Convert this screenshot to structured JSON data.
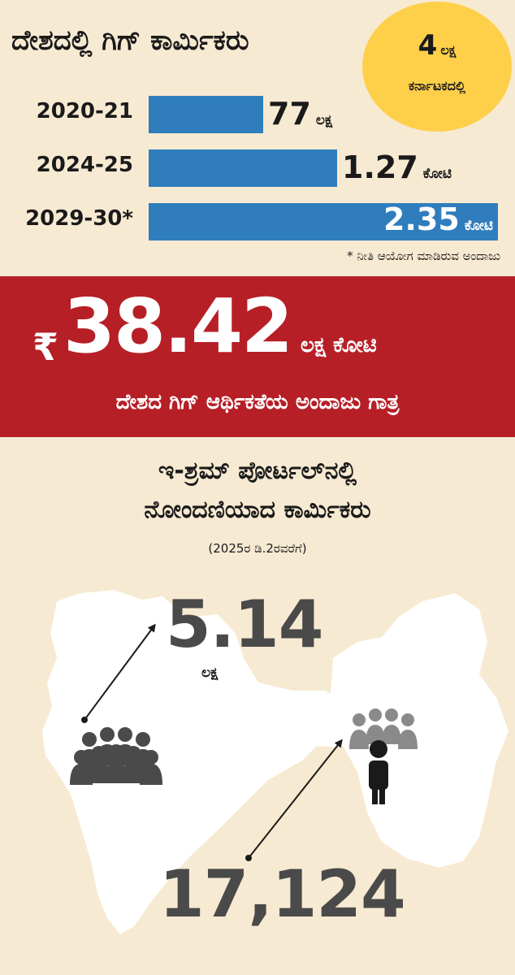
{
  "title": "ದೇಶದಲ್ಲಿ ಗಿಗ್ ಕಾರ್ಮಿಕರು",
  "badge": {
    "value": "4",
    "unit": "ಲಕ್ಷ",
    "label": "ಕರ್ನಾಟಕದಲ್ಲಿ"
  },
  "chart_data": {
    "type": "bar",
    "orientation": "horizontal",
    "categories": [
      "2020-21",
      "2024-25",
      "2029-30*"
    ],
    "values": [
      7700000,
      12700000,
      23500000
    ],
    "value_labels": [
      {
        "number": "77",
        "unit": "ಲಕ್ಷ"
      },
      {
        "number": "1.27",
        "unit": "ಕೋಟಿ"
      },
      {
        "number": "2.35",
        "unit": "ಕೋಟಿ"
      }
    ],
    "footnote": "* ನೀತಿ ಆಯೋಗ ಮಾಡಿರುವ ಅಂದಾಜು",
    "bar_color": "#2f7dbd"
  },
  "economy": {
    "currency": "₹",
    "amount": "38.42",
    "unit": "ಲಕ್ಷ ಕೋಟಿ",
    "description": "ದೇಶದ ಗಿಗ್ ಆರ್ಥಿಕತೆಯ ಅಂದಾಜು ಗಾತ್ರ",
    "band_color": "#b71f27"
  },
  "portal": {
    "title_line1": "ಇ-ಶ್ರಮ್ ಪೋರ್ಟಲ್‌ನಲ್ಲಿ",
    "title_line2": "ನೋಂದಣಿಯಾದ ಕಾರ್ಮಿಕರು",
    "date_note": "(2025ರ ಡಿ.2ರವರೆಗೆ)",
    "india": {
      "value": "5.14",
      "unit": "ಲಕ್ಷ",
      "icon": "people-group-icon"
    },
    "karnataka": {
      "value": "17,124",
      "icon": "people-group-icon"
    }
  }
}
